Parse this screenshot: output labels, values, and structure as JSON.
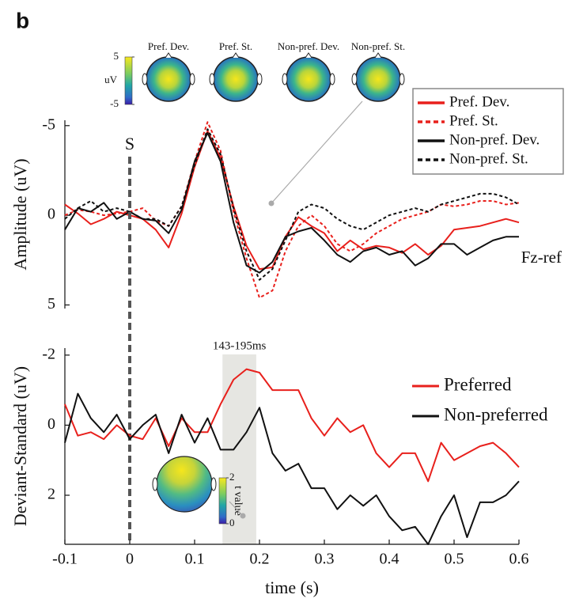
{
  "panel_label": "b",
  "chart_data": [
    {
      "type": "line",
      "ylabel": "Amplitude (uV)",
      "y_inverted": true,
      "xlim": [
        -0.1,
        0.6
      ],
      "ylim": [
        -5.3,
        5.2
      ],
      "yticks": [
        -5,
        0,
        5
      ],
      "legend": "upper right",
      "legend_frame": true,
      "annotation": "Fz-ref",
      "stimulus": {
        "x": 0,
        "label": "S"
      },
      "topomaps": {
        "labels": [
          "Pref. Dev.",
          "Pref. St.",
          "Non-pref. Dev.",
          "Non-pref. St."
        ],
        "colorbar_ticks": [
          5,
          -5
        ],
        "colorbar_label": "uV"
      },
      "x": [
        -0.1,
        -0.08,
        -0.06,
        -0.04,
        -0.02,
        0,
        0.02,
        0.04,
        0.06,
        0.08,
        0.1,
        0.12,
        0.14,
        0.16,
        0.18,
        0.2,
        0.22,
        0.24,
        0.26,
        0.28,
        0.3,
        0.32,
        0.34,
        0.36,
        0.38,
        0.4,
        0.42,
        0.44,
        0.46,
        0.48,
        0.5,
        0.52,
        0.54,
        0.56,
        0.58,
        0.6
      ],
      "series": [
        {
          "name": "Pref. Dev.",
          "color": "#e8201c",
          "style": "solid",
          "values": [
            -0.6,
            -0.1,
            0.5,
            0.2,
            -0.2,
            0,
            0.2,
            0.8,
            1.8,
            -0.1,
            -2.7,
            -4.7,
            -3.2,
            -0.5,
            1.7,
            3.0,
            2.9,
            1.2,
            0.1,
            0.6,
            1.0,
            2.0,
            1.4,
            1.9,
            1.7,
            1.8,
            2.1,
            1.6,
            2.2,
            1.7,
            0.8,
            0.7,
            0.6,
            0.4,
            0.2,
            0.4
          ]
        },
        {
          "name": "Pref. St.",
          "color": "#e8201c",
          "style": "dotted",
          "values": [
            0.0,
            -0.3,
            -0.2,
            0.0,
            -0.1,
            -0.2,
            -0.4,
            0.3,
            0.6,
            -0.5,
            -3.0,
            -5.2,
            -3.6,
            -0.2,
            2.4,
            4.6,
            4.2,
            2.0,
            0.6,
            0.0,
            0.6,
            1.6,
            2.0,
            1.6,
            1.0,
            0.6,
            0.2,
            0.0,
            -0.2,
            -0.6,
            -0.5,
            -0.6,
            -0.8,
            -0.8,
            -0.6,
            -0.7
          ]
        },
        {
          "name": "Non-pref. Dev.",
          "color": "#111111",
          "style": "solid",
          "values": [
            0.8,
            -0.4,
            -0.2,
            -0.7,
            0.2,
            -0.2,
            0.2,
            0.3,
            1.0,
            -0.3,
            -3.0,
            -4.6,
            -3.0,
            0.4,
            2.8,
            3.2,
            2.6,
            1.2,
            0.9,
            0.7,
            1.4,
            2.2,
            2.6,
            2.0,
            1.8,
            2.2,
            2.0,
            2.8,
            2.4,
            1.6,
            1.6,
            2.2,
            1.8,
            1.4,
            1.2,
            1.2
          ]
        },
        {
          "name": "Non-pref. St.",
          "color": "#111111",
          "style": "dotted",
          "values": [
            0.2,
            -0.4,
            -0.8,
            -0.2,
            -0.4,
            -0.2,
            0.2,
            0.2,
            0.6,
            -0.5,
            -2.8,
            -4.8,
            -3.4,
            -0.4,
            2.0,
            3.6,
            3.0,
            1.4,
            -0.2,
            -0.6,
            -0.4,
            0.2,
            0.6,
            0.8,
            0.4,
            0.0,
            -0.2,
            -0.4,
            -0.2,
            -0.6,
            -0.8,
            -1.0,
            -1.2,
            -1.2,
            -1.0,
            -0.6
          ]
        }
      ]
    },
    {
      "type": "line",
      "ylabel": "Deviant-Standard (uV)",
      "xlabel": "time (s)",
      "y_inverted": true,
      "xlim": [
        -0.1,
        0.6
      ],
      "ylim": [
        -2.2,
        3.4
      ],
      "yticks": [
        -2,
        0,
        2
      ],
      "xticks": [
        -0.1,
        0,
        0.1,
        0.2,
        0.3,
        0.4,
        0.5,
        0.6
      ],
      "legend": "upper right",
      "legend_frame": false,
      "highlight": {
        "range": [
          0.143,
          0.195
        ],
        "label": "143-195ms"
      },
      "topomap": {
        "colorbar_ticks": [
          2,
          0
        ],
        "colorbar_label": "t value"
      },
      "x": [
        -0.1,
        -0.08,
        -0.06,
        -0.04,
        -0.02,
        0,
        0.02,
        0.04,
        0.06,
        0.08,
        0.1,
        0.12,
        0.14,
        0.16,
        0.18,
        0.2,
        0.22,
        0.24,
        0.26,
        0.28,
        0.3,
        0.32,
        0.34,
        0.36,
        0.38,
        0.4,
        0.42,
        0.44,
        0.46,
        0.48,
        0.5,
        0.52,
        0.54,
        0.56,
        0.58,
        0.6
      ],
      "series": [
        {
          "name": "Preferred",
          "color": "#e8201c",
          "style": "solid",
          "values": [
            -0.6,
            0.3,
            0.2,
            0.4,
            0.0,
            0.3,
            0.4,
            -0.2,
            0.6,
            -0.2,
            0.2,
            0.2,
            -0.6,
            -1.3,
            -1.6,
            -1.5,
            -1.0,
            -1.0,
            -1.0,
            -0.2,
            0.3,
            -0.2,
            0.2,
            0.0,
            0.8,
            1.2,
            0.8,
            0.8,
            1.6,
            0.5,
            1.0,
            0.8,
            0.6,
            0.5,
            0.8,
            1.2
          ]
        },
        {
          "name": "Non-preferred",
          "color": "#111111",
          "style": "solid",
          "values": [
            0.5,
            -0.9,
            -0.2,
            0.2,
            -0.3,
            0.4,
            0.0,
            -0.3,
            0.8,
            -0.3,
            0.5,
            -0.2,
            0.7,
            0.7,
            0.2,
            -0.5,
            0.8,
            1.3,
            1.1,
            1.8,
            1.8,
            2.4,
            2.0,
            2.3,
            2.0,
            2.6,
            3.0,
            2.9,
            3.4,
            2.6,
            2.0,
            3.2,
            2.2,
            2.2,
            2.0,
            1.6
          ]
        }
      ]
    }
  ]
}
